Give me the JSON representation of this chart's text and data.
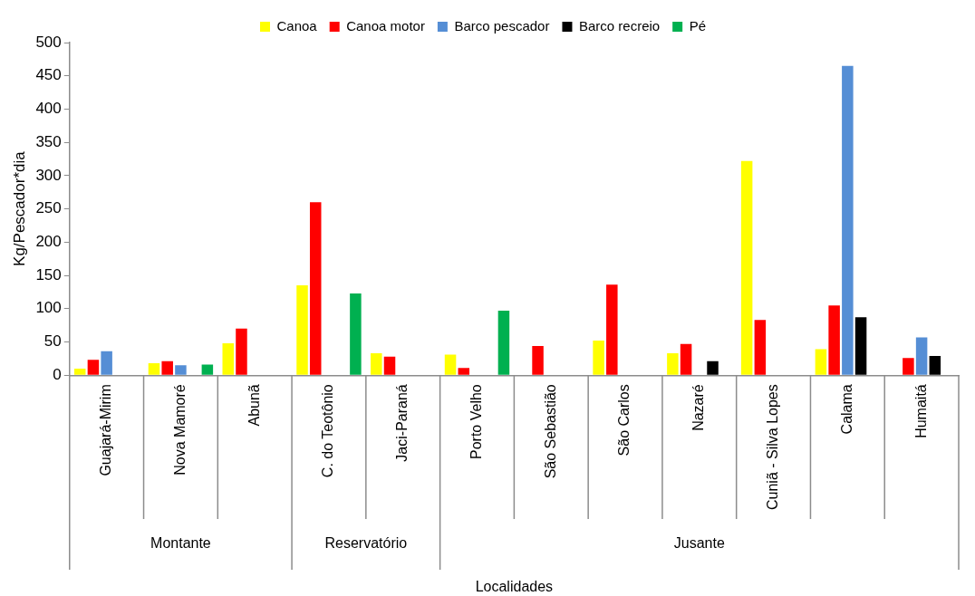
{
  "chart_data": {
    "type": "bar",
    "xlabel": "Localidades",
    "ylabel": "Kg/Pescador*dia",
    "categories": [
      "Guajará-Mirim",
      "Nova Mamoré",
      "Abunã",
      "C. do Teotônio",
      "Jaci-Paraná",
      "Porto Velho",
      "São Sebastião",
      "São Carlos",
      "Nazaré",
      "Cuniã - Silva Lopes",
      "Calama",
      "Humaitá"
    ],
    "series": [
      {
        "name": "Canoa",
        "color": "#ffff00",
        "values": [
          10,
          18,
          48,
          135,
          33,
          31,
          null,
          52,
          33,
          322,
          39,
          null
        ]
      },
      {
        "name": "Canoa motor",
        "color": "#ff0000",
        "values": [
          23,
          21,
          70,
          260,
          28,
          11,
          44,
          136,
          47,
          83,
          105,
          26
        ]
      },
      {
        "name": "Barco pescador",
        "color": "#558ed5",
        "values": [
          36,
          15,
          null,
          null,
          null,
          null,
          null,
          null,
          null,
          null,
          465,
          57
        ]
      },
      {
        "name": "Barco recreio",
        "color": "#000000",
        "values": [
          null,
          null,
          null,
          null,
          null,
          null,
          null,
          null,
          21,
          null,
          87,
          29
        ]
      },
      {
        "name": "Pé",
        "color": "#00b050",
        "values": [
          null,
          16,
          null,
          123,
          null,
          97,
          null,
          null,
          null,
          null,
          null,
          null
        ]
      }
    ],
    "annotations": [
      "Montante",
      "Reservatório",
      "Jusante"
    ],
    "ylim": [
      0,
      500
    ],
    "yticks": [
      0,
      50,
      100,
      150,
      200,
      250,
      300,
      350,
      400,
      450,
      500
    ],
    "grid": false,
    "legend": "top"
  }
}
